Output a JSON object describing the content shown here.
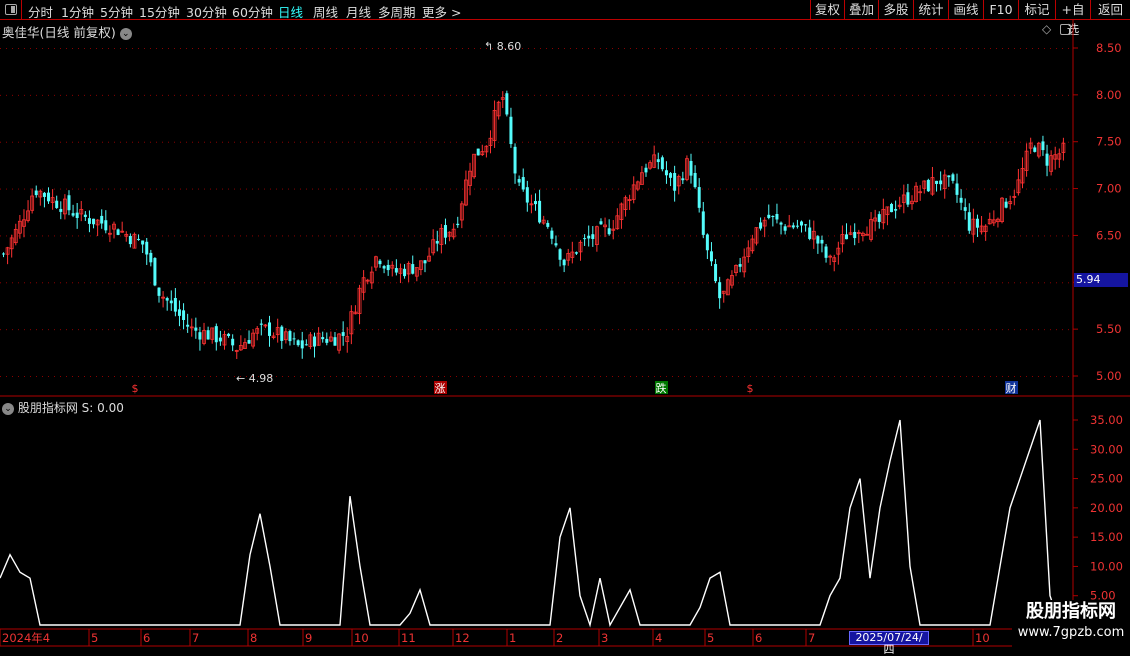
{
  "toolbar": {
    "periods": [
      "分时",
      "1分钟",
      "5分钟",
      "15分钟",
      "30分钟",
      "60分钟",
      "日线",
      "周线",
      "月线",
      "多周期",
      "更多 >"
    ],
    "active_period": "日线",
    "right_buttons": [
      "复权",
      "叠加",
      "多股",
      "统计",
      "画线",
      "F10",
      "标记",
      "+自选",
      "返回"
    ]
  },
  "stock_title": "奥佳华(日线 前复权)",
  "indicator_title": "股朋指标网 S: 0.00",
  "current_price": "5.94",
  "high_label": "8.60",
  "low_label": "4.98",
  "markers": [
    {
      "text": "$",
      "type": "dollar"
    },
    {
      "text": "涨",
      "type": "up"
    },
    {
      "text": "跌",
      "type": "down"
    },
    {
      "text": "$",
      "type": "dollar"
    },
    {
      "text": "财",
      "type": "finance"
    }
  ],
  "x_axis": {
    "labels": [
      "2024年4",
      "5",
      "6",
      "7",
      "8",
      "9",
      "10",
      "11",
      "12",
      "1",
      "2",
      "3",
      "4",
      "5",
      "6",
      "7",
      "10"
    ],
    "highlight": "2025/07/24/四"
  },
  "watermark": {
    "line1": "股朋指标网",
    "line2": "www.7gpzb.com"
  },
  "colors": {
    "up": "#ff3232",
    "down": "#54fcfc",
    "axis": "#b00000",
    "indicator": "#ffffff",
    "highlight": "#1515a0"
  },
  "chart_data": [
    {
      "type": "candlestick",
      "ylim": [
        4.85,
        8.75
      ],
      "yticks": [
        "8.50",
        "8.00",
        "7.50",
        "7.00",
        "6.50",
        "6.00",
        "5.50",
        "5.00"
      ],
      "closes": [
        6.3,
        6.6,
        7.0,
        6.9,
        6.8,
        6.7,
        6.65,
        6.6,
        6.5,
        6.4,
        5.9,
        5.7,
        5.5,
        5.45,
        5.4,
        5.3,
        5.45,
        5.5,
        5.4,
        5.3,
        5.4,
        5.4,
        5.45,
        6.0,
        6.3,
        6.1,
        6.15,
        6.2,
        6.5,
        6.6,
        7.3,
        7.5,
        8.0,
        7.0,
        6.8,
        6.6,
        6.2,
        6.4,
        6.5,
        6.6,
        6.9,
        7.2,
        7.3,
        7.0,
        7.3,
        6.4,
        5.8,
        6.1,
        6.5,
        6.7,
        6.6,
        6.6,
        6.5,
        6.2,
        6.5,
        6.6,
        6.6,
        6.8,
        6.9,
        7.0,
        7.1,
        7.0,
        6.6,
        6.6,
        6.8,
        7.0,
        7.5,
        7.3,
        7.4
      ]
    },
    {
      "type": "line",
      "name": "S",
      "ylim": [
        0,
        37
      ],
      "yticks": [
        "35.00",
        "30.00",
        "25.00",
        "20.00",
        "15.00",
        "10.00",
        "5.00"
      ],
      "values": [
        8,
        12,
        9,
        8,
        0,
        0,
        0,
        0,
        0,
        0,
        0,
        0,
        0,
        0,
        0,
        0,
        0,
        0,
        0,
        0,
        0,
        0,
        0,
        0,
        0,
        12,
        19,
        10,
        0,
        0,
        0,
        0,
        0,
        0,
        0,
        22,
        10,
        0,
        0,
        0,
        0,
        2,
        6,
        0,
        0,
        0,
        0,
        0,
        0,
        0,
        0,
        0,
        0,
        0,
        0,
        0,
        15,
        20,
        5,
        0,
        8,
        0,
        3,
        6,
        0,
        0,
        0,
        0,
        0,
        0,
        3,
        8,
        9,
        0,
        0,
        0,
        0,
        0,
        0,
        0,
        0,
        0,
        0,
        5,
        8,
        20,
        25,
        8,
        20,
        28,
        35,
        10,
        0,
        0,
        0,
        0,
        0,
        0,
        0,
        0,
        10,
        20,
        25,
        30,
        35,
        5,
        0
      ]
    }
  ]
}
